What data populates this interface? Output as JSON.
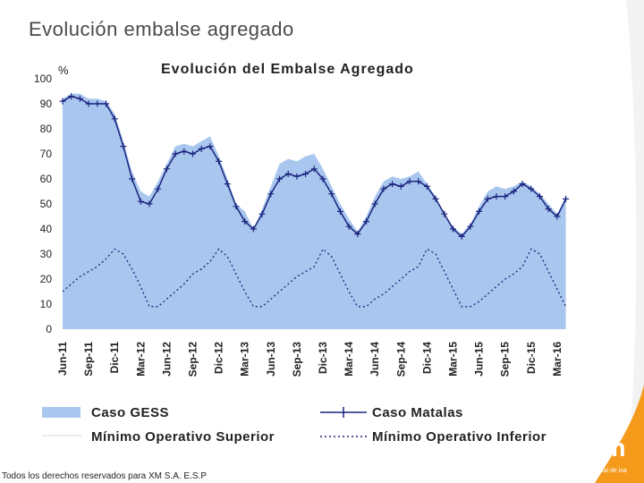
{
  "slide": {
    "title": "Evolución embalse agregado",
    "footer": "Todos los derechos reservados para XM S.A. E.S.P",
    "logo": "xm",
    "logo_subtitle": "filial de isa"
  },
  "colors": {
    "gess_fill": "#a8c6ee",
    "matalas_line": "#1a237e",
    "inferior_line": "#1a237e",
    "accent": "#f59a1b"
  },
  "chart_data": {
    "type": "line",
    "title": "Evolución del Embalse Agregado",
    "ylabel": "%",
    "xlabel": "",
    "ylim": [
      0,
      100
    ],
    "yticks": [
      0,
      10,
      20,
      30,
      40,
      50,
      60,
      70,
      80,
      90,
      100
    ],
    "x_tick_labels": [
      "Jun-11",
      "Sep-11",
      "Dic-11",
      "Mar-12",
      "Jun-12",
      "Sep-12",
      "Dic-12",
      "Mar-13",
      "Jun-13",
      "Sep-13",
      "Dic-13",
      "Mar-14",
      "Jun-14",
      "Sep-14",
      "Dic-14",
      "Mar-15",
      "Jun-15",
      "Sep-15",
      "Dic-15",
      "Mar-16"
    ],
    "months_start": "Jun-11",
    "series": [
      {
        "name": "Caso GESS",
        "style": "area",
        "values": [
          92,
          94,
          94,
          92,
          92,
          91,
          86,
          75,
          63,
          55,
          53,
          59,
          66,
          73,
          74,
          73,
          75,
          77,
          69,
          60,
          50,
          47,
          40,
          48,
          57,
          66,
          68,
          67,
          69,
          70,
          64,
          57,
          50,
          44,
          39,
          45,
          53,
          59,
          61,
          60,
          61,
          63,
          58,
          53,
          46,
          41,
          38,
          42,
          49,
          55,
          57,
          56,
          57,
          59,
          57,
          54,
          50,
          46,
          53
        ]
      },
      {
        "name": "Caso Matalas",
        "style": "line-marker",
        "values": [
          91,
          93,
          92,
          90,
          90,
          90,
          84,
          73,
          60,
          51,
          50,
          56,
          64,
          70,
          71,
          70,
          72,
          73,
          67,
          58,
          49,
          43,
          40,
          46,
          54,
          60,
          62,
          61,
          62,
          64,
          60,
          54,
          47,
          41,
          38,
          43,
          50,
          56,
          58,
          57,
          59,
          59,
          57,
          52,
          46,
          40,
          37,
          41,
          47,
          52,
          53,
          53,
          55,
          58,
          56,
          53,
          48,
          45,
          52
        ]
      },
      {
        "name": "Mínimo Operativo Superior",
        "style": "thin-line",
        "values": []
      },
      {
        "name": "Mínimo Operativo Inferior",
        "style": "dotted",
        "values": [
          15,
          18,
          21,
          23,
          25,
          28,
          32,
          30,
          24,
          17,
          9,
          9,
          12,
          15,
          18,
          22,
          24,
          27,
          32,
          29,
          22,
          15,
          9,
          9,
          12,
          15,
          18,
          21,
          23,
          25,
          32,
          29,
          22,
          15,
          9,
          9,
          12,
          14,
          17,
          20,
          23,
          25,
          32,
          30,
          23,
          16,
          9,
          9,
          11,
          14,
          17,
          20,
          22,
          25,
          32,
          30,
          23,
          16,
          9
        ]
      }
    ],
    "legend": [
      {
        "label": "Caso GESS",
        "style": "area"
      },
      {
        "label": "Caso Matalas",
        "style": "line-marker"
      },
      {
        "label": "Mínimo Operativo Superior",
        "style": "thin-line"
      },
      {
        "label": "Mínimo Operativo Inferior",
        "style": "dotted"
      }
    ]
  }
}
